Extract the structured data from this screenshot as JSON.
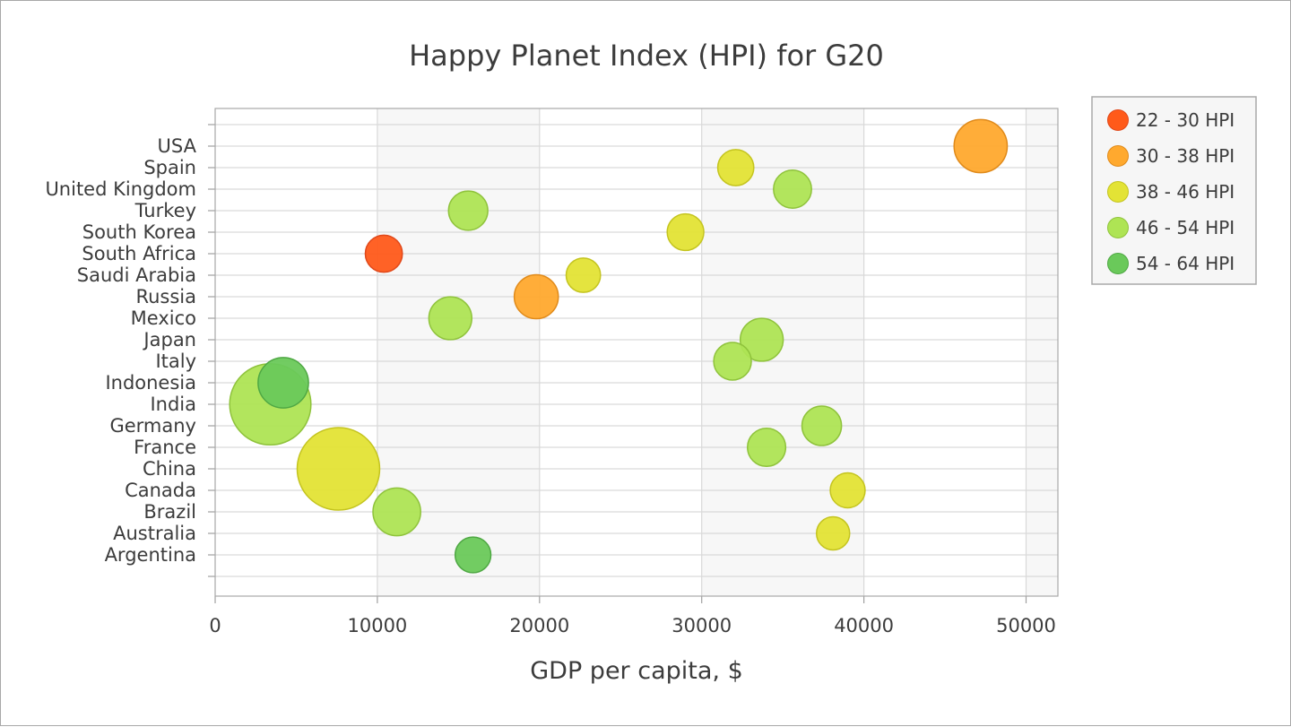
{
  "chart_data": {
    "type": "bubble",
    "title": "Happy Planet Index (HPI) for G20",
    "xlabel": "GDP per capita, $",
    "ylabel": "",
    "xlim": [
      0,
      52000
    ],
    "xticks": [
      0,
      10000,
      20000,
      30000,
      40000,
      50000
    ],
    "xtick_labels": [
      "0",
      "10000",
      "20000",
      "30000",
      "40000",
      "50000"
    ],
    "grid": true,
    "legend_position": "top-right",
    "categories": [
      "Argentina",
      "Australia",
      "Brazil",
      "Canada",
      "China",
      "France",
      "Germany",
      "India",
      "Indonesia",
      "Italy",
      "Japan",
      "Mexico",
      "Russia",
      "Saudi Arabia",
      "South Africa",
      "South Korea",
      "Turkey",
      "United Kingdom",
      "Spain",
      "USA"
    ],
    "legend": [
      {
        "label": "22 - 30 HPI",
        "color": "#ff5a1a",
        "stroke": "#e0481a"
      },
      {
        "label": "30 - 38 HPI",
        "color": "#ffa92e",
        "stroke": "#e08a1a"
      },
      {
        "label": "38 - 46 HPI",
        "color": "#e3e335",
        "stroke": "#c4c41f"
      },
      {
        "label": "46 - 54 HPI",
        "color": "#aee454",
        "stroke": "#8fc33c"
      },
      {
        "label": "54 - 64 HPI",
        "color": "#6ac95a",
        "stroke": "#4fa844"
      }
    ],
    "points": [
      {
        "country": "Argentina",
        "gdp": 15900,
        "population_millions": 43,
        "hpi_group": 4
      },
      {
        "country": "Australia",
        "gdp": 38100,
        "population_millions": 24,
        "hpi_group": 2
      },
      {
        "country": "Brazil",
        "gdp": 11200,
        "population_millions": 207,
        "hpi_group": 3
      },
      {
        "country": "Canada",
        "gdp": 39000,
        "population_millions": 36,
        "hpi_group": 2
      },
      {
        "country": "China",
        "gdp": 7600,
        "population_millions": 1380,
        "hpi_group": 2
      },
      {
        "country": "France",
        "gdp": 34000,
        "population_millions": 67,
        "hpi_group": 3
      },
      {
        "country": "Germany",
        "gdp": 37400,
        "population_millions": 82,
        "hpi_group": 3
      },
      {
        "country": "India",
        "gdp": 3400,
        "population_millions": 1320,
        "hpi_group": 3
      },
      {
        "country": "Indonesia",
        "gdp": 4200,
        "population_millions": 261,
        "hpi_group": 4
      },
      {
        "country": "Italy",
        "gdp": 31900,
        "population_millions": 61,
        "hpi_group": 3
      },
      {
        "country": "Japan",
        "gdp": 33700,
        "population_millions": 127,
        "hpi_group": 3
      },
      {
        "country": "Mexico",
        "gdp": 14500,
        "population_millions": 127,
        "hpi_group": 3
      },
      {
        "country": "Russia",
        "gdp": 19800,
        "population_millions": 144,
        "hpi_group": 1
      },
      {
        "country": "Saudi Arabia",
        "gdp": 22700,
        "population_millions": 32,
        "hpi_group": 2
      },
      {
        "country": "South Africa",
        "gdp": 10400,
        "population_millions": 55,
        "hpi_group": 0
      },
      {
        "country": "South Korea",
        "gdp": 29000,
        "population_millions": 51,
        "hpi_group": 2
      },
      {
        "country": "Turkey",
        "gdp": 15600,
        "population_millions": 79,
        "hpi_group": 3
      },
      {
        "country": "United Kingdom",
        "gdp": 35600,
        "population_millions": 65,
        "hpi_group": 3
      },
      {
        "country": "Spain",
        "gdp": 32100,
        "population_millions": 46,
        "hpi_group": 2
      },
      {
        "country": "USA",
        "gdp": 47200,
        "population_millions": 323,
        "hpi_group": 1
      }
    ]
  }
}
